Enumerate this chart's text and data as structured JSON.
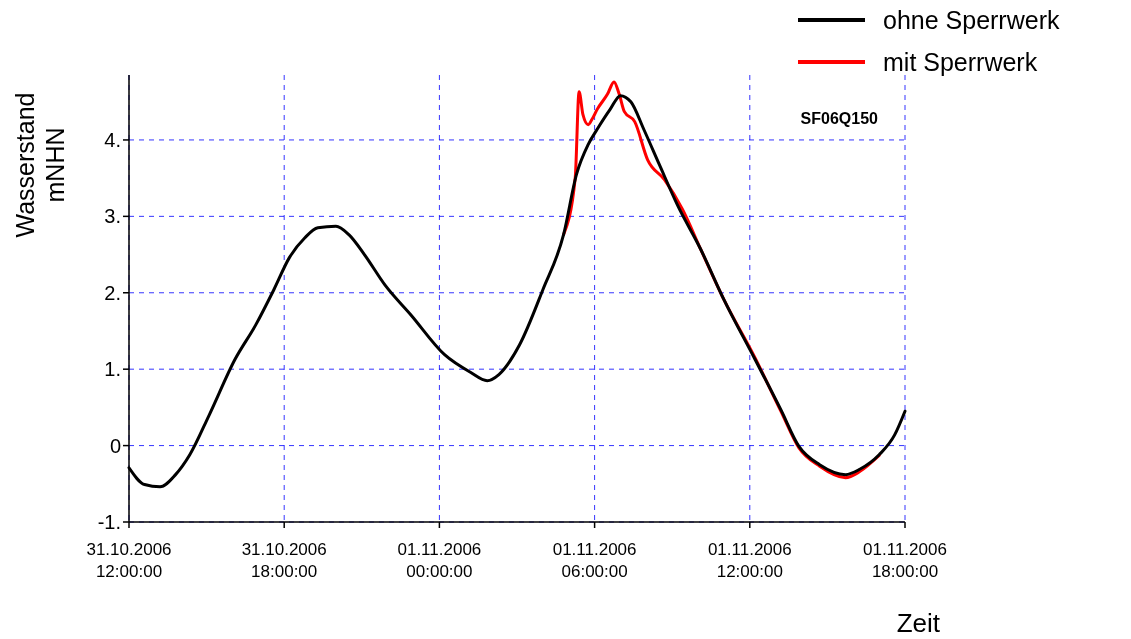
{
  "chart_data": {
    "type": "line",
    "xlabel": "Zeit",
    "ylabel": "Wasserstand mNHN",
    "annotations": [
      "SF06Q150"
    ],
    "xlim": [
      "2006-10-31T12:00",
      "2006-11-01T18:00"
    ],
    "ylim": [
      -1,
      4.85
    ],
    "xticks": [
      {
        "value": "2006-10-31T12:00",
        "label": "31.10.2006 12:00:00"
      },
      {
        "value": "2006-10-31T18:00",
        "label": "31.10.2006 18:00:00"
      },
      {
        "value": "2006-11-01T00:00",
        "label": "01.11.2006 00:00:00"
      },
      {
        "value": "2006-11-01T06:00",
        "label": "01.11.2006 06:00:00"
      },
      {
        "value": "2006-11-01T12:00",
        "label": "01.11.2006 12:00:00"
      },
      {
        "value": "2006-11-01T18:00",
        "label": "01.11.2006 18:00:00"
      }
    ],
    "yticks": [
      {
        "value": -1,
        "label": "-1."
      },
      0,
      {
        "value": 1,
        "label": "1."
      },
      {
        "value": 2,
        "label": "2."
      },
      {
        "value": 3,
        "label": "3."
      },
      {
        "value": 4,
        "label": "4."
      }
    ],
    "grid": true,
    "legend": "top right",
    "line_style": "solid",
    "marker": "none",
    "series": [
      {
        "name": "ohne Sperrwerk",
        "color": "#000000",
        "x": [
          "2006-10-31T12:00",
          "2006-10-31T12:36",
          "2006-10-31T13:12",
          "2006-10-31T13:48",
          "2006-10-31T14:21",
          "2006-10-31T15:06",
          "2006-10-31T16:06",
          "2006-10-31T16:54",
          "2006-10-31T17:36",
          "2006-10-31T18:12",
          "2006-10-31T18:48",
          "2006-10-31T19:18",
          "2006-10-31T20:00",
          "2006-10-31T20:30",
          "2006-10-31T21:06",
          "2006-10-31T21:54",
          "2006-10-31T22:54",
          "2006-11-01T00:12",
          "2006-11-01T01:12",
          "2006-11-01T01:51",
          "2006-11-01T02:18",
          "2006-11-01T03:06",
          "2006-11-01T04:00",
          "2006-11-01T04:48",
          "2006-11-01T05:18",
          "2006-11-01T05:45",
          "2006-11-01T06:06",
          "2006-11-01T06:36",
          "2006-11-01T07:00",
          "2006-11-01T07:24",
          "2006-11-01T07:54",
          "2006-11-01T08:30",
          "2006-11-01T09:12",
          "2006-11-01T10:06",
          "2006-11-01T11:00",
          "2006-11-01T12:12",
          "2006-11-01T13:12",
          "2006-11-01T13:54",
          "2006-11-01T14:42",
          "2006-11-01T15:42",
          "2006-11-01T16:15",
          "2006-11-01T17:00",
          "2006-11-01T17:36",
          "2006-11-01T18:00"
        ],
        "values": [
          -0.29,
          -0.51,
          -0.54,
          -0.38,
          -0.12,
          0.4,
          1.13,
          1.58,
          2.04,
          2.46,
          2.72,
          2.85,
          2.87,
          2.76,
          2.5,
          2.1,
          1.71,
          1.19,
          0.96,
          0.85,
          0.93,
          1.32,
          2.04,
          2.76,
          3.55,
          3.94,
          4.14,
          4.4,
          4.58,
          4.5,
          4.14,
          3.68,
          3.15,
          2.57,
          1.91,
          1.13,
          0.47,
          -0.01,
          -0.25,
          -0.38,
          -0.31,
          -0.12,
          0.14,
          0.45
        ]
      },
      {
        "name": "mit Sperrwerk",
        "color": "#ff0000",
        "x": [
          "2006-11-01T04:48",
          "2006-11-01T05:15",
          "2006-11-01T05:24",
          "2006-11-01T05:33",
          "2006-11-01T05:45",
          "2006-11-01T05:54",
          "2006-11-01T06:06",
          "2006-11-01T06:30",
          "2006-11-01T06:45",
          "2006-11-01T06:57",
          "2006-11-01T07:09",
          "2006-11-01T07:33",
          "2006-11-01T08:03",
          "2006-11-01T08:42",
          "2006-11-01T09:24",
          "2006-11-01T10:06",
          "2006-11-01T11:00",
          "2006-11-01T12:12",
          "2006-11-01T13:12",
          "2006-11-01T13:54",
          "2006-11-01T14:42",
          "2006-11-01T15:42",
          "2006-11-01T16:15",
          "2006-11-01T17:00"
        ],
        "values": [
          2.76,
          3.5,
          4.63,
          4.33,
          4.2,
          4.27,
          4.4,
          4.6,
          4.76,
          4.6,
          4.37,
          4.24,
          3.74,
          3.48,
          3.09,
          2.57,
          1.91,
          1.15,
          0.45,
          -0.03,
          -0.27,
          -0.42,
          -0.34,
          -0.13
        ]
      }
    ]
  }
}
